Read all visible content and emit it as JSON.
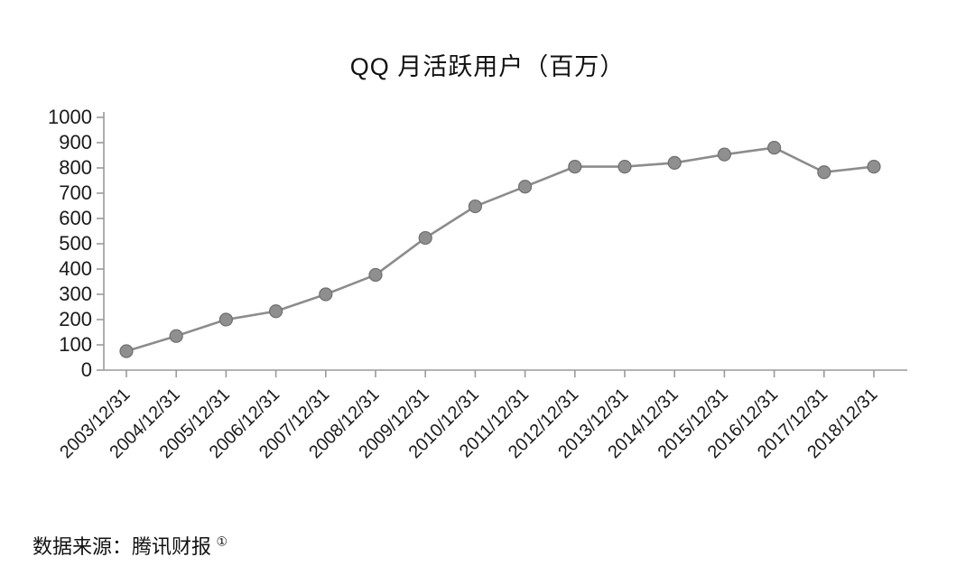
{
  "chart_data": {
    "type": "line",
    "title": "QQ 月活跃用户（百万）",
    "categories": [
      "2003/12/31",
      "2004/12/31",
      "2005/12/31",
      "2006/12/31",
      "2007/12/31",
      "2008/12/31",
      "2009/12/31",
      "2010/12/31",
      "2011/12/31",
      "2012/12/31",
      "2013/12/31",
      "2014/12/31",
      "2015/12/31",
      "2016/12/31",
      "2017/12/31",
      "2018/12/31"
    ],
    "values": [
      75,
      135,
      200,
      233,
      300,
      377,
      523,
      648,
      726,
      805,
      805,
      820,
      853,
      880,
      783,
      805
    ],
    "xlabel": "",
    "ylabel": "",
    "ylim": [
      0,
      1000
    ],
    "ytick_interval": 100,
    "grid": false,
    "legend_position": "none",
    "line_color": "#8c8c8c",
    "marker_color": "#8f8f8f",
    "marker_edge_color": "#6f6f6f",
    "axis_color": "#9a9a9a",
    "label_color": "#1a1a1a"
  },
  "source": {
    "text": "数据来源：腾讯财报",
    "note_mark": "①"
  }
}
